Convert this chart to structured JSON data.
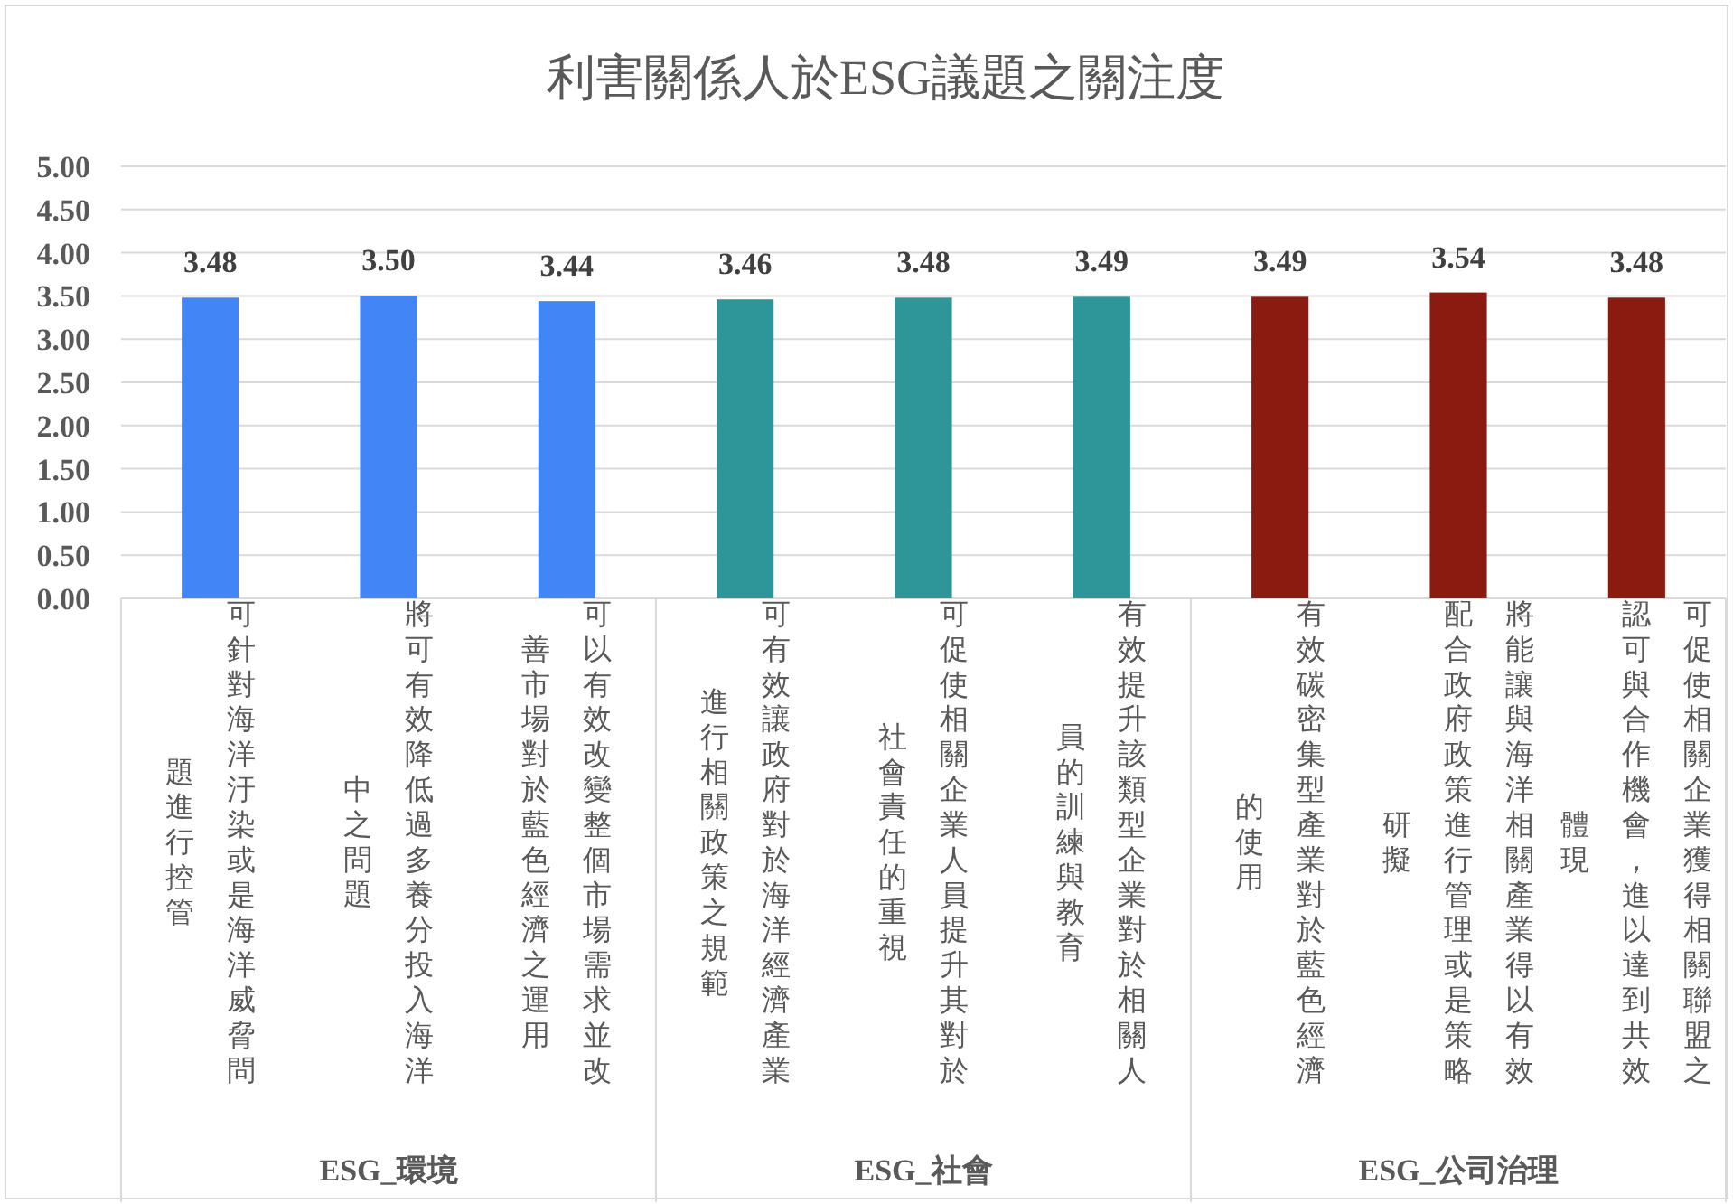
{
  "chart_data": {
    "type": "bar",
    "title": "利害關係人於ESG議題之關注度",
    "categories": [
      "可針對海洋汙染或是海洋威脅問題進行控管",
      "將可有效降低過多養分投入海洋中之問題",
      "可以有效改變整個市場需求並改善市場對於藍色經濟之運用",
      "可有效讓政府對於海洋經濟產業進行相關政策之規範",
      "可促使相關企業人員提升其對於社會責任的重視",
      "有效提升該類型企業對於相關人員的訓練與教育",
      "有效碳密集型產業對於藍色經濟的使用",
      "將能讓與海洋相關產業得以有效配合政府政策進行管理或是策略研擬",
      "可促使相關企業獲得相關聯盟之認可與合作機會，進以達到共效體現"
    ],
    "values": [
      3.48,
      3.5,
      3.44,
      3.46,
      3.48,
      3.49,
      3.49,
      3.54,
      3.48
    ],
    "colors": [
      "#4285f4",
      "#4285f4",
      "#4285f4",
      "#2e9599",
      "#2e9599",
      "#2e9599",
      "#8b1a10",
      "#8b1a10",
      "#8b1a10"
    ],
    "value_labels": [
      "3.48",
      "3.50",
      "3.44",
      "3.46",
      "3.48",
      "3.49",
      "3.49",
      "3.54",
      "3.48"
    ],
    "annotations": [
      "ESG_環境",
      "ESG_社會",
      "ESG_公司治理"
    ],
    "ylim": [
      0,
      5
    ],
    "yticks": [
      {
        "value": 0,
        "label": "0.00"
      },
      {
        "value": 0.5,
        "label": "0.50"
      },
      {
        "value": 1,
        "label": "1.00"
      },
      {
        "value": 1.5,
        "label": "1.50"
      },
      {
        "value": 2,
        "label": "2.00"
      },
      {
        "value": 2.5,
        "label": "2.50"
      },
      {
        "value": 3,
        "label": "3.00"
      },
      {
        "value": 3.5,
        "label": "3.50"
      },
      {
        "value": 4,
        "label": "4.00"
      },
      {
        "value": 4.5,
        "label": "4.50"
      },
      {
        "value": 5,
        "label": "5.00"
      }
    ],
    "grid": "y"
  }
}
